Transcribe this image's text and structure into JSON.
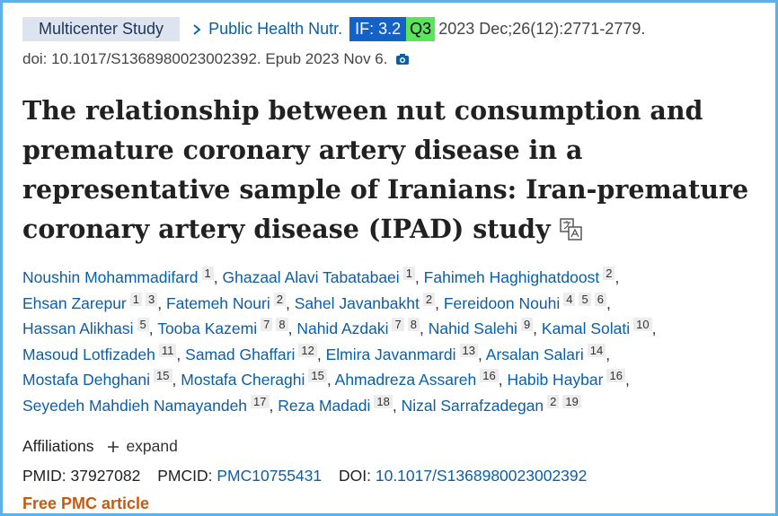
{
  "header": {
    "article_type": "Multicenter Study",
    "journal": "Public Health Nutr.",
    "impact_factor": "IF: 3.2",
    "quartile": "Q3",
    "citation": "2023 Dec;26(12):2771-2779.",
    "doi_line": "doi: 10.1017/S1368980023002392. Epub 2023 Nov 6."
  },
  "title": "The relationship between nut consumption and premature coronary artery disease in a representative sample of Iranians: Iran-premature coronary artery disease (IPAD) study",
  "authors": {
    "separator": ",",
    "list": [
      {
        "name": "Noushin Mohammadifard",
        "affiliations": [
          "1"
        ]
      },
      {
        "name": "Ghazaal Alavi Tabatabaei",
        "affiliations": [
          "1"
        ]
      },
      {
        "name": "Fahimeh Haghighatdoost",
        "affiliations": [
          "2"
        ]
      },
      {
        "name": "Ehsan Zarepur",
        "affiliations": [
          "1",
          "3"
        ]
      },
      {
        "name": "Fatemeh Nouri",
        "affiliations": [
          "2"
        ]
      },
      {
        "name": "Sahel Javanbakht",
        "affiliations": [
          "2"
        ]
      },
      {
        "name": "Fereidoon Nouhi",
        "affiliations": [
          "4",
          "5",
          "6"
        ]
      },
      {
        "name": "Hassan Alikhasi",
        "affiliations": [
          "5"
        ]
      },
      {
        "name": "Tooba Kazemi",
        "affiliations": [
          "7",
          "8"
        ]
      },
      {
        "name": "Nahid Azdaki",
        "affiliations": [
          "7",
          "8"
        ]
      },
      {
        "name": "Nahid Salehi",
        "affiliations": [
          "9"
        ]
      },
      {
        "name": "Kamal Solati",
        "affiliations": [
          "10"
        ]
      },
      {
        "name": "Masoud Lotfizadeh",
        "affiliations": [
          "11"
        ]
      },
      {
        "name": "Samad Ghaffari",
        "affiliations": [
          "12"
        ]
      },
      {
        "name": "Elmira Javanmardi",
        "affiliations": [
          "13"
        ]
      },
      {
        "name": "Arsalan Salari",
        "affiliations": [
          "14"
        ]
      },
      {
        "name": "Mostafa Dehghani",
        "affiliations": [
          "15"
        ]
      },
      {
        "name": "Mostafa Cheraghi",
        "affiliations": [
          "15"
        ]
      },
      {
        "name": "Ahmadreza Assareh",
        "affiliations": [
          "16"
        ]
      },
      {
        "name": "Habib Haybar",
        "affiliations": [
          "16"
        ]
      },
      {
        "name": "Seyedeh Mahdieh Namayandeh",
        "affiliations": [
          "17"
        ]
      },
      {
        "name": "Reza Madadi",
        "affiliations": [
          "18"
        ]
      },
      {
        "name": "Nizal Sarrafzadegan",
        "affiliations": [
          "2",
          "19"
        ]
      }
    ]
  },
  "affiliations": {
    "label": "Affiliations",
    "toggle": "expand"
  },
  "identifiers": {
    "pmid_label": "PMID:",
    "pmid": "37927082",
    "pmcid_label": "PMCID:",
    "pmcid": "PMC10755431",
    "doi_label": "DOI:",
    "doi": "10.1017/S1368980023002392"
  },
  "free_article": "Free PMC article"
}
